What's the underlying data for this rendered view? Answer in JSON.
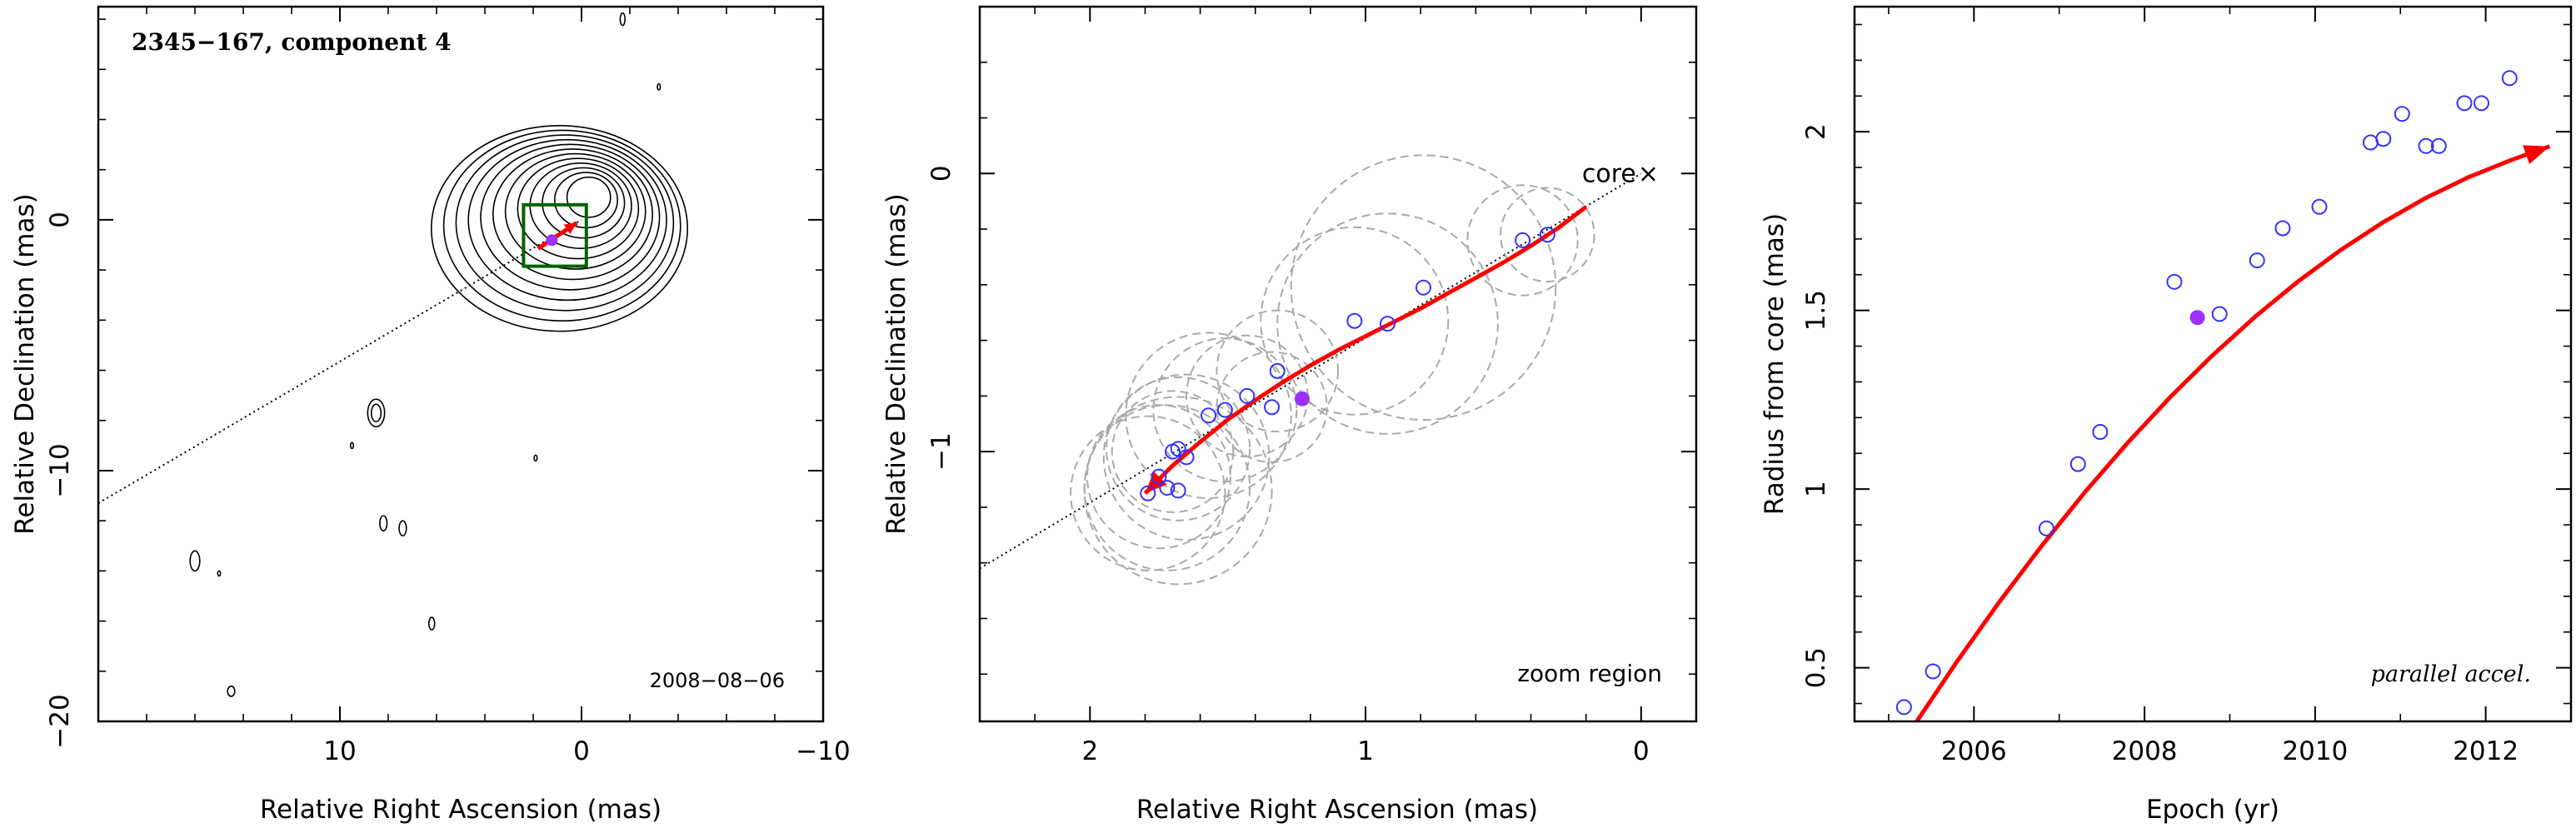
{
  "chart_data": [
    {
      "type": "scatter",
      "title": "2345−167, component 4",
      "xlabel": "Relative Right Ascension (mas)",
      "ylabel": "Relative Declination (mas)",
      "xlim": [
        20,
        -10
      ],
      "ylim": [
        -20,
        8.5
      ],
      "xticks": [
        10,
        0,
        -10
      ],
      "xtick_labels": [
        "10",
        "0",
        "−10"
      ],
      "yticks": [
        0,
        -10,
        -20
      ],
      "ytick_labels": [
        "0",
        "−10",
        "−20"
      ],
      "annotation": "2008−08−06",
      "colors": {
        "contour": "#000000",
        "box": "#006400",
        "arrow": "#ff0000",
        "point": "#9b30ff",
        "track": "#000000"
      },
      "track_line": {
        "x": [
          20,
          0
        ],
        "y": [
          -11.3,
          0
        ]
      },
      "zoom_box": {
        "x": [
          2.4,
          -0.2
        ],
        "y": [
          -1.85,
          0.6
        ]
      },
      "contour_blobs": [
        {
          "x": -0.3,
          "y": 0.9,
          "rx": [
            0.9,
            1.3,
            1.7,
            2.1,
            2.5,
            2.9,
            3.3,
            3.7,
            4.1,
            4.5,
            4.9,
            5.3
          ],
          "ry": [
            0.8,
            1.1,
            1.4,
            1.7,
            2.0,
            2.3,
            2.6,
            2.9,
            3.2,
            3.5,
            3.8,
            4.1
          ]
        },
        {
          "x": 8.5,
          "y": -7.7,
          "rx": [
            0.2,
            0.35
          ],
          "ry": [
            0.35,
            0.55
          ]
        },
        {
          "x": 8.2,
          "y": -12.1,
          "rx": [
            0.15
          ],
          "ry": [
            0.3
          ]
        },
        {
          "x": 7.4,
          "y": -12.3,
          "rx": [
            0.15
          ],
          "ry": [
            0.3
          ]
        },
        {
          "x": 16,
          "y": -13.6,
          "rx": [
            0.2
          ],
          "ry": [
            0.4
          ]
        },
        {
          "x": 6.2,
          "y": -16.1,
          "rx": [
            0.12
          ],
          "ry": [
            0.25
          ]
        },
        {
          "x": 14.5,
          "y": -18.8,
          "rx": [
            0.15
          ],
          "ry": [
            0.2
          ]
        },
        {
          "x": -1.7,
          "y": 8.0,
          "rx": [
            0.1
          ],
          "ry": [
            0.25
          ]
        },
        {
          "x": -3.2,
          "y": 5.3,
          "rx": [
            0.06
          ],
          "ry": [
            0.12
          ]
        },
        {
          "x": 9.5,
          "y": -9.0,
          "rx": [
            0.06
          ],
          "ry": [
            0.12
          ]
        },
        {
          "x": 1.9,
          "y": -9.5,
          "rx": [
            0.06
          ],
          "ry": [
            0.12
          ]
        },
        {
          "x": 15,
          "y": -14.1,
          "rx": [
            0.06
          ],
          "ry": [
            0.1
          ]
        }
      ],
      "arrow": {
        "x": [
          1.8,
          0.2
        ],
        "y": [
          -1.15,
          -0.12
        ]
      },
      "point": {
        "x": 1.23,
        "y": -0.81
      }
    },
    {
      "type": "scatter",
      "title": "",
      "xlabel": "Relative Right Ascension (mas)",
      "ylabel": "Relative Declination (mas)",
      "xlim": [
        2.4,
        -0.2
      ],
      "ylim": [
        -1.97,
        0.6
      ],
      "xticks": [
        2,
        1,
        0
      ],
      "xtick_labels": [
        "2",
        "1",
        "0"
      ],
      "yticks": [
        0,
        -1
      ],
      "ytick_labels": [
        "0",
        "−1"
      ],
      "core_label": "core",
      "core_marker": "×",
      "core": {
        "x": 0,
        "y": 0
      },
      "annotation": "zoom region",
      "track_line": {
        "x": [
          2.4,
          0
        ],
        "y": [
          -1.42,
          0
        ]
      },
      "points": {
        "x": [
          1.79,
          1.75,
          1.72,
          1.68,
          1.7,
          1.68,
          1.65,
          1.57,
          1.51,
          1.43,
          1.34,
          1.32,
          1.04,
          0.92,
          0.79,
          0.43,
          0.34
        ],
        "y": [
          -1.15,
          -1.09,
          -1.13,
          -1.14,
          -1.0,
          -0.99,
          -1.02,
          -0.87,
          -0.85,
          -0.8,
          -0.84,
          -0.71,
          -0.53,
          -0.54,
          -0.41,
          -0.24,
          -0.22
        ]
      },
      "error_radius": [
        0.28,
        0.26,
        0.3,
        0.34,
        0.22,
        0.26,
        0.3,
        0.3,
        0.26,
        0.22,
        0.2,
        0.22,
        0.34,
        0.4,
        0.48,
        0.2,
        0.17
      ],
      "current_point": {
        "x": 1.23,
        "y": -0.81
      },
      "fit_curve": {
        "x": [
          1.8,
          1.7,
          1.6,
          1.5,
          1.4,
          1.3,
          1.2,
          1.1,
          1.0,
          0.9,
          0.8,
          0.7,
          0.6,
          0.5,
          0.4,
          0.3,
          0.2
        ],
        "y": [
          -1.15,
          -1.05,
          -0.965,
          -0.885,
          -0.815,
          -0.75,
          -0.69,
          -0.635,
          -0.585,
          -0.535,
          -0.485,
          -0.43,
          -0.375,
          -0.32,
          -0.26,
          -0.195,
          -0.12
        ]
      },
      "colors": {
        "points": "#3333ff",
        "current": "#9b30ff",
        "fit": "#ff0000",
        "errors": "#aaaaaa"
      }
    },
    {
      "type": "scatter",
      "title": "",
      "xlabel": "Epoch (yr)",
      "ylabel": "Radius from core (mas)",
      "xlim": [
        2004.6,
        2013.0
      ],
      "ylim": [
        0.35,
        2.35
      ],
      "xticks": [
        2006,
        2008,
        2010,
        2012
      ],
      "xtick_labels": [
        "2006",
        "2008",
        "2010",
        "2012"
      ],
      "yticks": [
        0.5,
        1,
        1.5,
        2
      ],
      "ytick_labels": [
        "0.5",
        "1",
        "1.5",
        "2"
      ],
      "annotation": "parallel accel.",
      "points": {
        "x": [
          2005.18,
          2005.52,
          2006.85,
          2007.22,
          2007.48,
          2008.35,
          2008.88,
          2009.32,
          2009.62,
          2010.05,
          2010.65,
          2010.8,
          2011.02,
          2011.3,
          2011.45,
          2011.75,
          2011.95,
          2012.28
        ],
        "y": [
          0.39,
          0.49,
          0.89,
          1.07,
          1.16,
          1.58,
          1.49,
          1.64,
          1.73,
          1.79,
          1.97,
          1.98,
          2.05,
          1.96,
          1.96,
          2.08,
          2.08,
          2.15
        ]
      },
      "current_point": {
        "x": 2008.62,
        "y": 1.48
      },
      "fit_curve": {
        "x": [
          2005.33,
          2005.8,
          2006.3,
          2006.8,
          2007.3,
          2007.8,
          2008.3,
          2008.8,
          2009.3,
          2009.8,
          2010.3,
          2010.8,
          2011.3,
          2011.8,
          2012.3,
          2012.75
        ],
        "y": [
          0.35,
          0.517,
          0.685,
          0.843,
          0.991,
          1.129,
          1.257,
          1.375,
          1.483,
          1.581,
          1.669,
          1.747,
          1.815,
          1.873,
          1.921,
          1.959
        ]
      },
      "colors": {
        "points": "#3333ff",
        "current": "#9b30ff",
        "fit": "#ff0000"
      }
    }
  ]
}
